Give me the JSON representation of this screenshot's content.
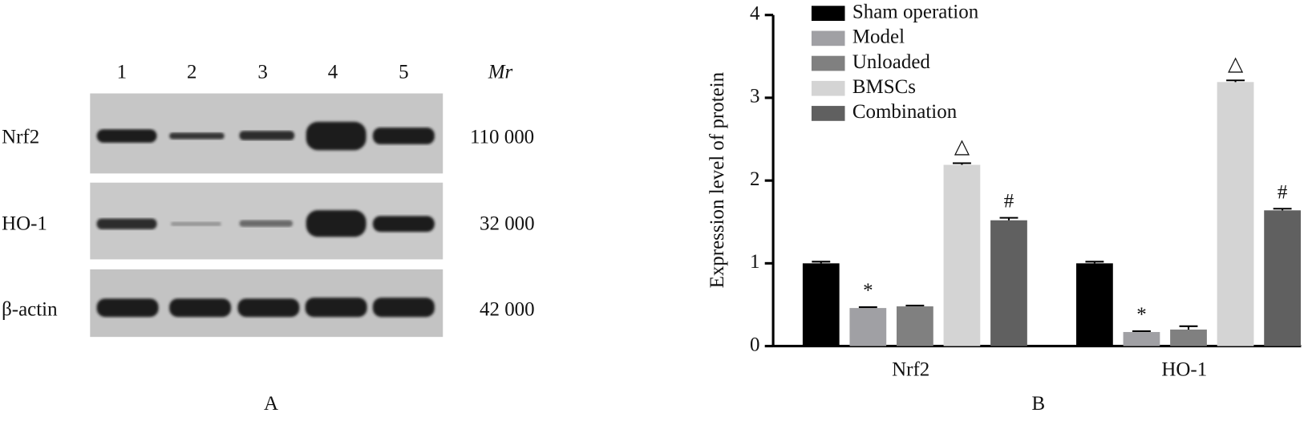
{
  "blot": {
    "lanes": [
      "1",
      "2",
      "3",
      "4",
      "5"
    ],
    "mr_header": "Mr",
    "rows": [
      {
        "label": "Nrf2",
        "mr": "110 000"
      },
      {
        "label": "HO-1",
        "mr": "32 000"
      },
      {
        "label": "β-actin",
        "mr": "42 000"
      }
    ],
    "panel": "A"
  },
  "chart_data": {
    "type": "bar",
    "panel": "B",
    "y_label": "Expression level of protein",
    "categories": [
      "Nrf2",
      "HO-1"
    ],
    "ylim": [
      0,
      4
    ],
    "yticks": [
      0,
      1,
      2,
      3,
      4
    ],
    "series": [
      {
        "name": "Sham operation",
        "color": "#000000",
        "values": [
          1.0,
          1.0
        ],
        "errors": [
          0.02,
          0.02
        ]
      },
      {
        "name": "Model",
        "color": "#a0a0a4",
        "values": [
          0.46,
          0.17
        ],
        "errors": [
          0.01,
          0.01
        ],
        "marks": [
          "*",
          "*"
        ]
      },
      {
        "name": "Unloaded",
        "color": "#808080",
        "values": [
          0.48,
          0.2
        ],
        "errors": [
          0.01,
          0.04
        ]
      },
      {
        "name": "BMSCs",
        "color": "#d4d4d4",
        "values": [
          2.19,
          3.19
        ],
        "errors": [
          0.02,
          0.02
        ],
        "marks": [
          "△",
          "△"
        ]
      },
      {
        "name": "Combination",
        "color": "#606060",
        "values": [
          1.52,
          1.64
        ],
        "errors": [
          0.03,
          0.02
        ],
        "marks": [
          "#",
          "#"
        ]
      }
    ]
  }
}
